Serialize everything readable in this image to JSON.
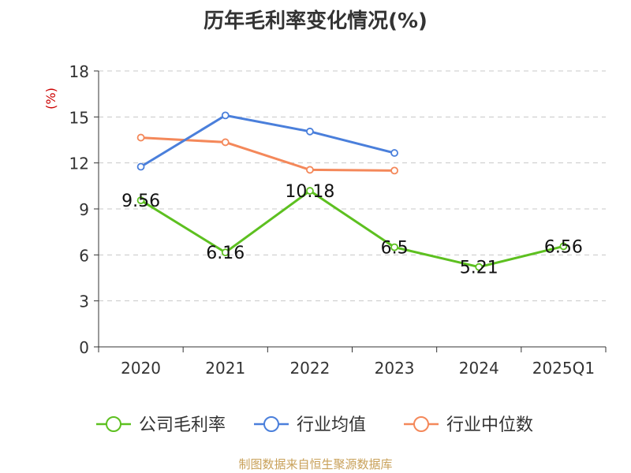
{
  "chart_data": {
    "type": "line",
    "title": "历年毛利率变化情况(%)",
    "ylabel": "(%)",
    "xlabel": "",
    "categories": [
      "2020",
      "2021",
      "2022",
      "2023",
      "2024",
      "2025Q1"
    ],
    "ylim": [
      0,
      18
    ],
    "yticks": [
      0,
      3,
      6,
      9,
      12,
      15,
      18
    ],
    "grid": true,
    "legend_position": "bottom",
    "series": [
      {
        "name": "公司毛利率",
        "color": "#5dc020",
        "values": [
          9.56,
          6.16,
          10.18,
          6.5,
          5.21,
          6.56
        ],
        "labels": [
          "9.56",
          "6.16",
          "10.18",
          "6.5",
          "5.21",
          "6.56"
        ]
      },
      {
        "name": "行业均值",
        "color": "#4a7fdb",
        "values": [
          11.75,
          15.1,
          14.05,
          12.65,
          null,
          null
        ],
        "labels": []
      },
      {
        "name": "行业中位数",
        "color": "#f4885a",
        "values": [
          13.65,
          13.35,
          11.55,
          11.5,
          null,
          null
        ],
        "labels": []
      }
    ]
  },
  "source": "制图数据来自恒生聚源数据库"
}
